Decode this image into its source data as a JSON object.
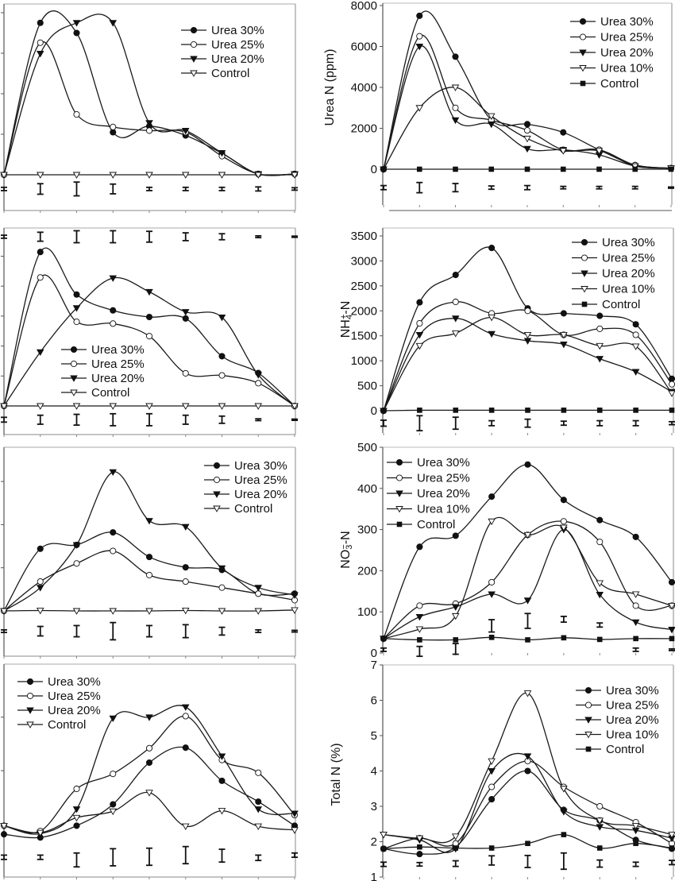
{
  "chart_data": [
    {
      "type": "line",
      "panel": "top-left",
      "ylabel_parts": [],
      "ytick_labels_shown": false,
      "yticks": [
        0,
        1,
        2,
        3,
        4
      ],
      "ytick_labels": [],
      "legend_placement": "top-right",
      "series": [
        {
          "name": "Urea 30%",
          "marker": "filled-circle",
          "values": [
            0,
            3.75,
            3.5,
            1.05,
            1.2,
            0.97,
            0.53,
            0.02,
            0.02
          ]
        },
        {
          "name": "Urea 25%",
          "marker": "open-circle",
          "values": [
            0,
            3.26,
            1.49,
            1.18,
            1.09,
            1.05,
            0.46,
            0.02,
            0.02
          ]
        },
        {
          "name": "Urea 20%",
          "marker": "filled-triangle-down",
          "values": [
            0,
            2.99,
            3.75,
            3.75,
            1.28,
            1.09,
            0.54,
            0.02,
            0.02
          ]
        },
        {
          "name": "Control",
          "marker": "open-triangle-down",
          "values": [
            0,
            0,
            0,
            0,
            0,
            0,
            0,
            0,
            0
          ]
        }
      ],
      "error_bars": [
        {
          "center": -0.35,
          "half": [
            0.04,
            0.13,
            0.17,
            0.12,
            0.04,
            0.04,
            0.04,
            0.05,
            0.03
          ]
        }
      ]
    },
    {
      "type": "line",
      "panel": "top-right",
      "ylabel_parts": [
        {
          "t": "Urea N (ppm)"
        }
      ],
      "ytick_labels_shown": true,
      "yticks": [
        0,
        2000,
        4000,
        6000,
        8000
      ],
      "ytick_labels": [
        "0",
        "2000",
        "4000",
        "6000",
        "8000"
      ],
      "ylim": [
        0,
        8000
      ],
      "legend_placement": "top-right",
      "series": [
        {
          "name": "Urea 30%",
          "marker": "filled-circle",
          "values": [
            0,
            7500,
            5500,
            2400,
            2200,
            1800,
            950,
            200,
            50
          ]
        },
        {
          "name": "Urea 25%",
          "marker": "open-circle",
          "values": [
            0,
            6500,
            3000,
            2400,
            1900,
            950,
            950,
            200,
            50
          ]
        },
        {
          "name": "Urea 20%",
          "marker": "filled-triangle-down",
          "values": [
            0,
            6000,
            2400,
            2200,
            1000,
            950,
            700,
            150,
            50
          ]
        },
        {
          "name": "Urea 10%",
          "marker": "open-triangle-down",
          "values": [
            0,
            3000,
            4000,
            2600,
            1500,
            900,
            900,
            150,
            50
          ]
        },
        {
          "name": "Control",
          "marker": "filled-square",
          "values": [
            0,
            0,
            0,
            0,
            0,
            0,
            0,
            0,
            0
          ]
        }
      ],
      "error_bars": [
        {
          "center": -900,
          "half": [
            100,
            250,
            200,
            80,
            100,
            60,
            60,
            60,
            30
          ]
        }
      ]
    },
    {
      "type": "line",
      "panel": "second-left",
      "ylabel_parts": [],
      "ytick_labels_shown": false,
      "yticks": [
        0,
        1,
        2,
        3,
        4,
        5
      ],
      "ytick_labels": [],
      "legend_placement": "bottom-left",
      "series": [
        {
          "name": "Urea 30%",
          "marker": "filled-circle",
          "values": [
            0,
            5.14,
            3.72,
            3.19,
            2.97,
            2.92,
            1.66,
            1.1,
            0
          ]
        },
        {
          "name": "Urea 25%",
          "marker": "open-circle",
          "values": [
            0,
            4.29,
            2.81,
            2.75,
            2.33,
            1.09,
            1.02,
            0.76,
            0
          ]
        },
        {
          "name": "Urea 20%",
          "marker": "filled-triangle-down",
          "values": [
            0,
            1.8,
            3.27,
            4.27,
            3.81,
            3.14,
            2.96,
            1.04,
            0
          ]
        },
        {
          "name": "Control",
          "marker": "open-triangle-down",
          "values": [
            0,
            0,
            0,
            0,
            0,
            0,
            0,
            0,
            0
          ]
        }
      ],
      "error_bars": [
        {
          "center": 5.65,
          "half": [
            0.05,
            0.15,
            0.2,
            0.2,
            0.18,
            0.13,
            0.1,
            0.03,
            0.02
          ]
        },
        {
          "center": -0.46,
          "half": [
            0.08,
            0.15,
            0.18,
            0.2,
            0.2,
            0.15,
            0.12,
            0.03,
            0.02
          ]
        }
      ]
    },
    {
      "type": "line",
      "panel": "second-right",
      "ylabel_parts": [
        {
          "t": "NH"
        },
        {
          "t": "4",
          "s": "sub"
        },
        {
          "t": "+",
          "s": "sup"
        },
        {
          "t": "-N"
        }
      ],
      "ytick_labels_shown": true,
      "yticks": [
        0,
        500,
        1000,
        1500,
        2000,
        2500,
        3000,
        3500
      ],
      "ytick_labels": [
        "0",
        "500",
        "1000",
        "1500",
        "2000",
        "2500",
        "3000",
        "3500"
      ],
      "ylim": [
        0,
        3500
      ],
      "legend_placement": "top-right",
      "series": [
        {
          "name": "Urea 30%",
          "marker": "filled-circle",
          "values": [
            0,
            2170,
            2720,
            3260,
            2050,
            1950,
            1900,
            1730,
            640
          ]
        },
        {
          "name": "Urea 25%",
          "marker": "open-circle",
          "values": [
            0,
            1750,
            2180,
            1950,
            2000,
            1520,
            1640,
            1520,
            530
          ]
        },
        {
          "name": "Urea 20%",
          "marker": "filled-triangle-down",
          "values": [
            0,
            1520,
            1850,
            1540,
            1400,
            1330,
            1040,
            780,
            380
          ]
        },
        {
          "name": "Urea 10%",
          "marker": "open-triangle-down",
          "values": [
            0,
            1300,
            1550,
            1870,
            1520,
            1520,
            1300,
            1290,
            350
          ]
        },
        {
          "name": "Control",
          "marker": "filled-square",
          "values": [
            0,
            10,
            10,
            10,
            10,
            10,
            10,
            10,
            10
          ]
        }
      ],
      "error_bars": [
        {
          "center": -250,
          "half": [
            60,
            150,
            120,
            50,
            80,
            40,
            50,
            50,
            30
          ]
        }
      ]
    },
    {
      "type": "line",
      "panel": "third-left",
      "ylabel_parts": [],
      "ytick_labels_shown": false,
      "yticks": [
        0,
        1,
        2,
        3
      ],
      "ytick_labels": [],
      "legend_placement": "top-right",
      "series": [
        {
          "name": "Urea 30%",
          "marker": "filled-circle",
          "values": [
            0,
            1.44,
            1.53,
            1.82,
            1.25,
            1.01,
            0.95,
            0.4,
            0.4
          ]
        },
        {
          "name": "Urea 25%",
          "marker": "open-circle",
          "values": [
            0,
            0.68,
            1.1,
            1.39,
            0.83,
            0.68,
            0.54,
            0.4,
            0.25
          ]
        },
        {
          "name": "Urea 20%",
          "marker": "filled-triangle-down",
          "values": [
            0,
            0.54,
            1.53,
            3.22,
            2.09,
            1.95,
            0.99,
            0.54,
            0.37
          ]
        },
        {
          "name": "Control",
          "marker": "open-triangle-down",
          "values": [
            0,
            0.01,
            0,
            0,
            0,
            0.01,
            0,
            0,
            0.02
          ]
        }
      ],
      "error_bars": [
        {
          "center": -0.47,
          "half": [
            0.03,
            0.11,
            0.13,
            0.2,
            0.13,
            0.15,
            0.09,
            0.03,
            0.02
          ]
        }
      ]
    },
    {
      "type": "line",
      "panel": "third-right",
      "ylabel_parts": [
        {
          "t": "NO"
        },
        {
          "t": "3",
          "s": "sub"
        },
        {
          "t": "−",
          "s": "sup"
        },
        {
          "t": "-N"
        }
      ],
      "ytick_labels_shown": true,
      "yticks": [
        0,
        100,
        200,
        300,
        400,
        500
      ],
      "ytick_labels": [
        "0",
        "100",
        "200",
        "300",
        "400",
        "500"
      ],
      "ylim": [
        0,
        500
      ],
      "legend_placement": "top-left",
      "series": [
        {
          "name": "Urea 30%",
          "marker": "filled-circle",
          "values": [
            35,
            258,
            285,
            380,
            458,
            372,
            323,
            282,
            172
          ]
        },
        {
          "name": "Urea 25%",
          "marker": "open-circle",
          "values": [
            35,
            115,
            120,
            172,
            287,
            320,
            270,
            115,
            115
          ]
        },
        {
          "name": "Urea 20%",
          "marker": "filled-triangle-down",
          "values": [
            35,
            88,
            112,
            143,
            128,
            300,
            142,
            75,
            57
          ]
        },
        {
          "name": "Urea 10%",
          "marker": "open-triangle-down",
          "values": [
            35,
            58,
            90,
            320,
            287,
            305,
            170,
            143,
            115
          ]
        },
        {
          "name": "Control",
          "marker": "filled-square",
          "values": [
            35,
            32,
            32,
            38,
            32,
            37,
            33,
            35,
            35
          ]
        }
      ],
      "error_bars": [
        {
          "center": [
            8,
            4,
            10,
            66,
            78,
            82,
            68,
            8,
            8
          ],
          "half": [
            4,
            12,
            13,
            15,
            18,
            7,
            5,
            4,
            2
          ]
        }
      ]
    },
    {
      "type": "line",
      "panel": "bottom-left",
      "ylabel_parts": [],
      "ytick_labels_shown": false,
      "yticks": [
        2,
        3
      ],
      "ytick_labels": [],
      "legend_placement": "top-left",
      "series": [
        {
          "name": "Urea 30%",
          "marker": "filled-circle",
          "values": [
            0.81,
            0.75,
            0.97,
            1.37,
            2.15,
            2.43,
            1.81,
            1.42,
            0.97
          ]
        },
        {
          "name": "Urea 25%",
          "marker": "open-circle",
          "values": [
            0.97,
            0.87,
            1.66,
            1.94,
            2.42,
            3.02,
            2.2,
            1.96,
            1.17
          ]
        },
        {
          "name": "Urea 20%",
          "marker": "filled-triangle-down",
          "values": [
            0.97,
            0.82,
            1.28,
            2.98,
            3.0,
            3.19,
            2.27,
            1.28,
            1.2
          ]
        },
        {
          "name": "Control",
          "marker": "open-triangle-down",
          "values": [
            0.97,
            0.84,
            1.12,
            1.24,
            1.59,
            0.96,
            1.25,
            0.96,
            0.89
          ]
        }
      ],
      "error_bars": [
        {
          "center": [
            0.38,
            0.38,
            0.33,
            0.38,
            0.39,
            0.42,
            0.41,
            0.37,
            0.42
          ],
          "half": [
            0.04,
            0.04,
            0.13,
            0.16,
            0.16,
            0.16,
            0.12,
            0.05,
            0.04
          ]
        }
      ]
    },
    {
      "type": "line",
      "panel": "bottom-right",
      "ylabel_parts": [
        {
          "t": "Total N (%)"
        }
      ],
      "ytick_labels_shown": true,
      "yticks": [
        1,
        2,
        3,
        4,
        5,
        6,
        7
      ],
      "ytick_labels": [
        "1",
        "2",
        "3",
        "4",
        "5",
        "6",
        "7"
      ],
      "ylim": [
        1,
        7
      ],
      "legend_placement": "top-right",
      "series": [
        {
          "name": "Urea 30%",
          "marker": "filled-circle",
          "values": [
            1.8,
            1.65,
            1.85,
            3.2,
            4.0,
            2.9,
            2.6,
            2.05,
            1.8
          ]
        },
        {
          "name": "Urea 25%",
          "marker": "open-circle",
          "values": [
            1.8,
            2.1,
            1.95,
            3.55,
            4.28,
            3.55,
            3.0,
            2.55,
            1.95
          ]
        },
        {
          "name": "Urea 20%",
          "marker": "filled-triangle-down",
          "values": [
            2.2,
            2.05,
            1.8,
            4.0,
            4.42,
            2.85,
            2.42,
            2.32,
            2.1
          ]
        },
        {
          "name": "Urea 10%",
          "marker": "open-triangle-down",
          "values": [
            2.2,
            2.1,
            2.15,
            4.28,
            6.2,
            3.5,
            2.6,
            2.45,
            2.2
          ]
        },
        {
          "name": "Control",
          "marker": "filled-square",
          "values": [
            1.8,
            1.85,
            1.82,
            1.82,
            1.95,
            2.2,
            1.82,
            1.95,
            1.82
          ]
        }
      ],
      "error_bars": [
        {
          "center": [
            1.36,
            1.36,
            1.38,
            1.47,
            1.44,
            1.45,
            1.38,
            1.36,
            1.41
          ],
          "half": [
            0.06,
            0.05,
            0.08,
            0.13,
            0.17,
            0.23,
            0.1,
            0.06,
            0.06
          ]
        }
      ]
    }
  ]
}
